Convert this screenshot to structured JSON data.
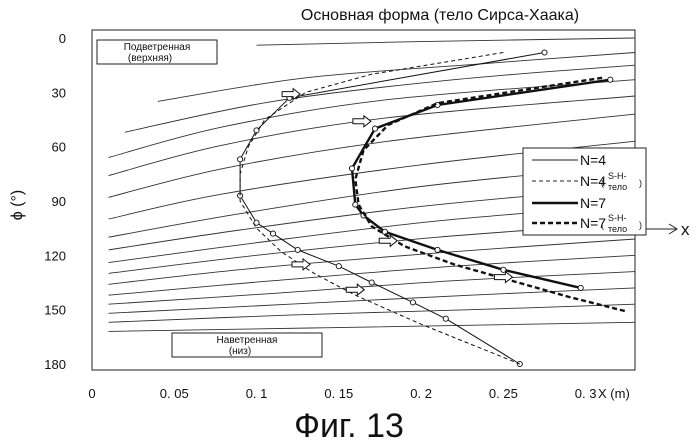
{
  "chart_data": {
    "type": "line",
    "title": "Основная форма (тело Сирса-Хаака)",
    "figure_caption": "Фиг. 13",
    "xlabel": "X (m)",
    "ylabel": "ϕ (°)",
    "xlim": [
      0,
      0.33
    ],
    "ylim": [
      180,
      0
    ],
    "x_ticks": [
      "0",
      "0. 05",
      "0. 1",
      "0. 15",
      "0. 2",
      "0. 25",
      "0. 3"
    ],
    "x_tick_values": [
      0,
      0.05,
      0.1,
      0.15,
      0.2,
      0.25,
      0.3
    ],
    "y_ticks": [
      "0",
      "30",
      "60",
      "90",
      "120",
      "150",
      "180"
    ],
    "y_tick_values": [
      0,
      30,
      60,
      90,
      120,
      150,
      180
    ],
    "x_arrow_label": "x",
    "box_top": {
      "line1": "Подветренная",
      "line2": "(верхняя)"
    },
    "box_bottom": {
      "line1": "Наветренная",
      "line2": "(низ)"
    },
    "legend": [
      {
        "label": "N=4",
        "sub": "",
        "style": "solid-thin"
      },
      {
        "label": "N=4",
        "sub": "S-H-\nтело",
        "style": "dashed-thin"
      },
      {
        "label": "N=7",
        "sub": "",
        "style": "solid-thick"
      },
      {
        "label": "N=7",
        "sub": "S-H-\nтело",
        "style": "dashed-thick"
      }
    ],
    "series": [
      {
        "name": "N=4",
        "style": "solid-thin",
        "markers": true,
        "x": [
          0.275,
          0.12,
          0.1,
          0.09,
          0.09,
          0.1,
          0.11,
          0.125,
          0.15,
          0.17,
          0.195,
          0.215,
          0.26
        ],
        "y": [
          8,
          33,
          51,
          67,
          87,
          102,
          108,
          117,
          126,
          135,
          146,
          155,
          180
        ]
      },
      {
        "name": "N=4 (S-H-тело)",
        "style": "dashed-thin",
        "markers": false,
        "x": [
          0.25,
          0.17,
          0.13,
          0.105,
          0.095,
          0.09,
          0.09,
          0.1,
          0.115,
          0.135,
          0.16,
          0.2,
          0.26
        ],
        "y": [
          8,
          20,
          30,
          45,
          60,
          75,
          90,
          105,
          118,
          130,
          142,
          158,
          180
        ]
      },
      {
        "name": "N=7",
        "style": "solid-thick",
        "markers": true,
        "x": [
          0.315,
          0.21,
          0.172,
          0.158,
          0.16,
          0.165,
          0.178,
          0.21,
          0.25,
          0.297
        ],
        "y": [
          23,
          37,
          50,
          72,
          92,
          98,
          107,
          117,
          128,
          138
        ]
      },
      {
        "name": "N=7 (S-H-тело)",
        "style": "dashed-thick",
        "markers": false,
        "x": [
          0.31,
          0.21,
          0.18,
          0.165,
          0.16,
          0.162,
          0.17,
          0.19,
          0.22,
          0.255,
          0.29,
          0.325
        ],
        "y": [
          22,
          36,
          48,
          62,
          78,
          92,
          104,
          115,
          125,
          134,
          143,
          151
        ]
      }
    ],
    "flow_lines": [
      {
        "x": [
          0.1,
          0.2,
          0.33
        ],
        "y": [
          4,
          2,
          0
        ]
      },
      {
        "x": [
          0.04,
          0.13,
          0.24,
          0.33
        ],
        "y": [
          35,
          22,
          14,
          8
        ]
      },
      {
        "x": [
          0.02,
          0.11,
          0.22,
          0.33
        ],
        "y": [
          52,
          35,
          23,
          15
        ]
      },
      {
        "x": [
          0.01,
          0.08,
          0.18,
          0.33
        ],
        "y": [
          66,
          49,
          34,
          23
        ]
      },
      {
        "x": [
          0.01,
          0.08,
          0.18,
          0.33
        ],
        "y": [
          76,
          59,
          44,
          32
        ]
      },
      {
        "x": [
          0.01,
          0.08,
          0.18,
          0.33
        ],
        "y": [
          88,
          72,
          57,
          42
        ]
      },
      {
        "x": [
          0.01,
          0.08,
          0.2,
          0.33
        ],
        "y": [
          100,
          86,
          70,
          57
        ]
      },
      {
        "x": [
          0.01,
          0.09,
          0.2,
          0.33
        ],
        "y": [
          110,
          97,
          82,
          70
        ]
      },
      {
        "x": [
          0.01,
          0.09,
          0.2,
          0.33
        ],
        "y": [
          117,
          106,
          93,
          82
        ]
      },
      {
        "x": [
          0.01,
          0.1,
          0.21,
          0.33
        ],
        "y": [
          124,
          113,
          101,
          92
        ]
      },
      {
        "x": [
          0.01,
          0.1,
          0.21,
          0.33
        ],
        "y": [
          130,
          120,
          110,
          102
        ]
      },
      {
        "x": [
          0.01,
          0.1,
          0.22,
          0.33
        ],
        "y": [
          136,
          127,
          118,
          111
        ]
      },
      {
        "x": [
          0.01,
          0.11,
          0.22,
          0.33
        ],
        "y": [
          142,
          134,
          126,
          120
        ]
      },
      {
        "x": [
          0.01,
          0.11,
          0.22,
          0.33
        ],
        "y": [
          147,
          141,
          134,
          129
        ]
      },
      {
        "x": [
          0.01,
          0.12,
          0.23,
          0.33
        ],
        "y": [
          152,
          147,
          142,
          138
        ]
      },
      {
        "x": [
          0.01,
          0.12,
          0.23,
          0.33
        ],
        "y": [
          157,
          153,
          150,
          147
        ]
      },
      {
        "x": [
          0.01,
          0.14,
          0.33
        ],
        "y": [
          162,
          160,
          157
        ]
      }
    ],
    "flow_arrows": [
      {
        "x": 0.121,
        "y": 31
      },
      {
        "x": 0.164,
        "y": 46
      },
      {
        "x": 0.18,
        "y": 112
      },
      {
        "x": 0.127,
        "y": 125
      },
      {
        "x": 0.16,
        "y": 139
      },
      {
        "x": 0.25,
        "y": 132
      }
    ]
  }
}
